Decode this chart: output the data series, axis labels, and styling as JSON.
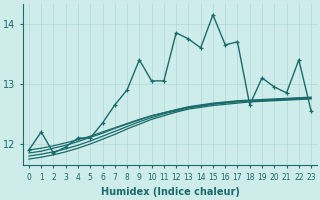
{
  "xlabel": "Humidex (Indice chaleur)",
  "bg_color": "#cdecea",
  "line_color": "#1a6b6b",
  "grid_color": "#b0d8d8",
  "x_data": [
    0,
    1,
    2,
    3,
    4,
    5,
    6,
    7,
    8,
    9,
    10,
    11,
    12,
    13,
    14,
    15,
    16,
    17,
    18,
    19,
    20,
    21,
    22,
    23
  ],
  "series_main": [
    11.9,
    12.2,
    11.85,
    11.95,
    12.1,
    12.1,
    12.35,
    12.65,
    12.9,
    13.4,
    13.05,
    13.05,
    13.85,
    13.75,
    13.6,
    14.15,
    13.65,
    13.7,
    12.65,
    13.1,
    12.95,
    12.85,
    13.4,
    12.55
  ],
  "smooth_lines": [
    [
      11.9,
      11.93,
      11.97,
      12.02,
      12.07,
      12.13,
      12.2,
      12.27,
      12.34,
      12.41,
      12.47,
      12.52,
      12.57,
      12.61,
      12.64,
      12.67,
      12.69,
      12.71,
      12.72,
      12.73,
      12.74,
      12.75,
      12.76,
      12.77
    ],
    [
      11.85,
      11.88,
      11.93,
      11.98,
      12.04,
      12.11,
      12.18,
      12.26,
      12.33,
      12.4,
      12.47,
      12.52,
      12.57,
      12.62,
      12.65,
      12.68,
      12.7,
      12.72,
      12.73,
      12.74,
      12.75,
      12.76,
      12.77,
      12.78
    ],
    [
      11.8,
      11.83,
      11.87,
      11.92,
      11.98,
      12.05,
      12.13,
      12.21,
      12.29,
      12.37,
      12.44,
      12.5,
      12.55,
      12.6,
      12.63,
      12.66,
      12.68,
      12.7,
      12.71,
      12.72,
      12.73,
      12.74,
      12.75,
      12.76
    ],
    [
      11.75,
      11.78,
      11.82,
      11.87,
      11.93,
      12.0,
      12.08,
      12.16,
      12.25,
      12.33,
      12.41,
      12.47,
      12.53,
      12.58,
      12.61,
      12.64,
      12.66,
      12.68,
      12.7,
      12.71,
      12.72,
      12.73,
      12.74,
      12.75
    ]
  ],
  "ylim": [
    11.65,
    14.35
  ],
  "xlim": [
    -0.5,
    23.5
  ],
  "yticks": [
    12,
    13,
    14
  ],
  "xticks": [
    0,
    1,
    2,
    3,
    4,
    5,
    6,
    7,
    8,
    9,
    10,
    11,
    12,
    13,
    14,
    15,
    16,
    17,
    18,
    19,
    20,
    21,
    22,
    23
  ]
}
